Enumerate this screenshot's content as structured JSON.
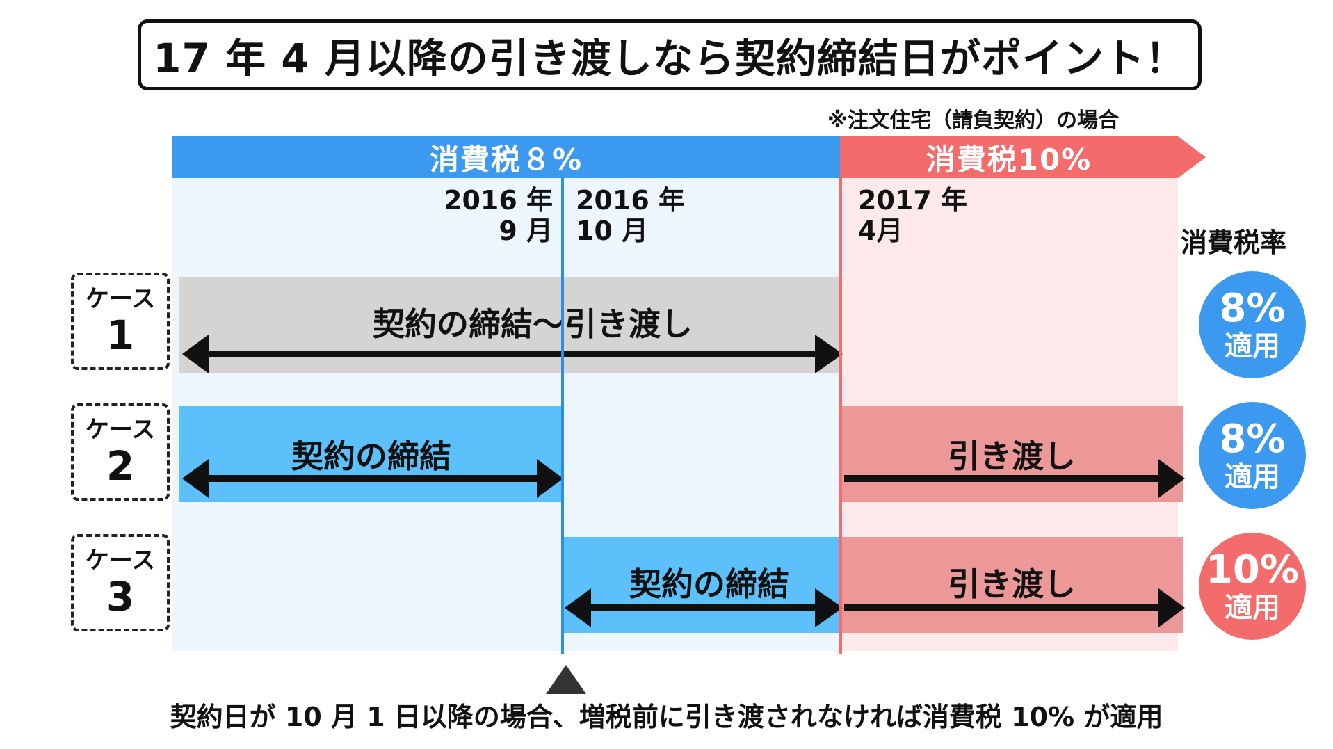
{
  "title": "17 年 4 月以降の引き渡しなら契約締結日がポイント！",
  "note": "※注文住宅（請負契約）の場合",
  "bands": {
    "tax8": "消費税８%",
    "tax10": "消費税10%"
  },
  "dates": {
    "d1": [
      "2016 年",
      "9 月"
    ],
    "d2": [
      "2016 年",
      "10 月"
    ],
    "d3": [
      "2017 年",
      "4月"
    ]
  },
  "rate_header": "消費税率",
  "cases": [
    {
      "label": "ケース",
      "number": "1",
      "bars": [
        {
          "text": "契約の締結～引き渡し"
        }
      ],
      "badge": {
        "pct": "8%",
        "text": "適用",
        "color": "#3b99f0"
      }
    },
    {
      "label": "ケース",
      "number": "2",
      "bars": [
        {
          "text": "契約の締結"
        },
        {
          "text": "引き渡し"
        }
      ],
      "badge": {
        "pct": "8%",
        "text": "適用",
        "color": "#3b99f0"
      }
    },
    {
      "label": "ケース",
      "number": "3",
      "bars": [
        {
          "text": "契約の締結"
        },
        {
          "text": "引き渡し"
        }
      ],
      "badge": {
        "pct": "10%",
        "text": "適用",
        "color": "#f46b6b"
      }
    }
  ],
  "footer": "契約日が 10 月 1 日以降の場合、増税前に引き渡されなければ消費税 10% が適用"
}
